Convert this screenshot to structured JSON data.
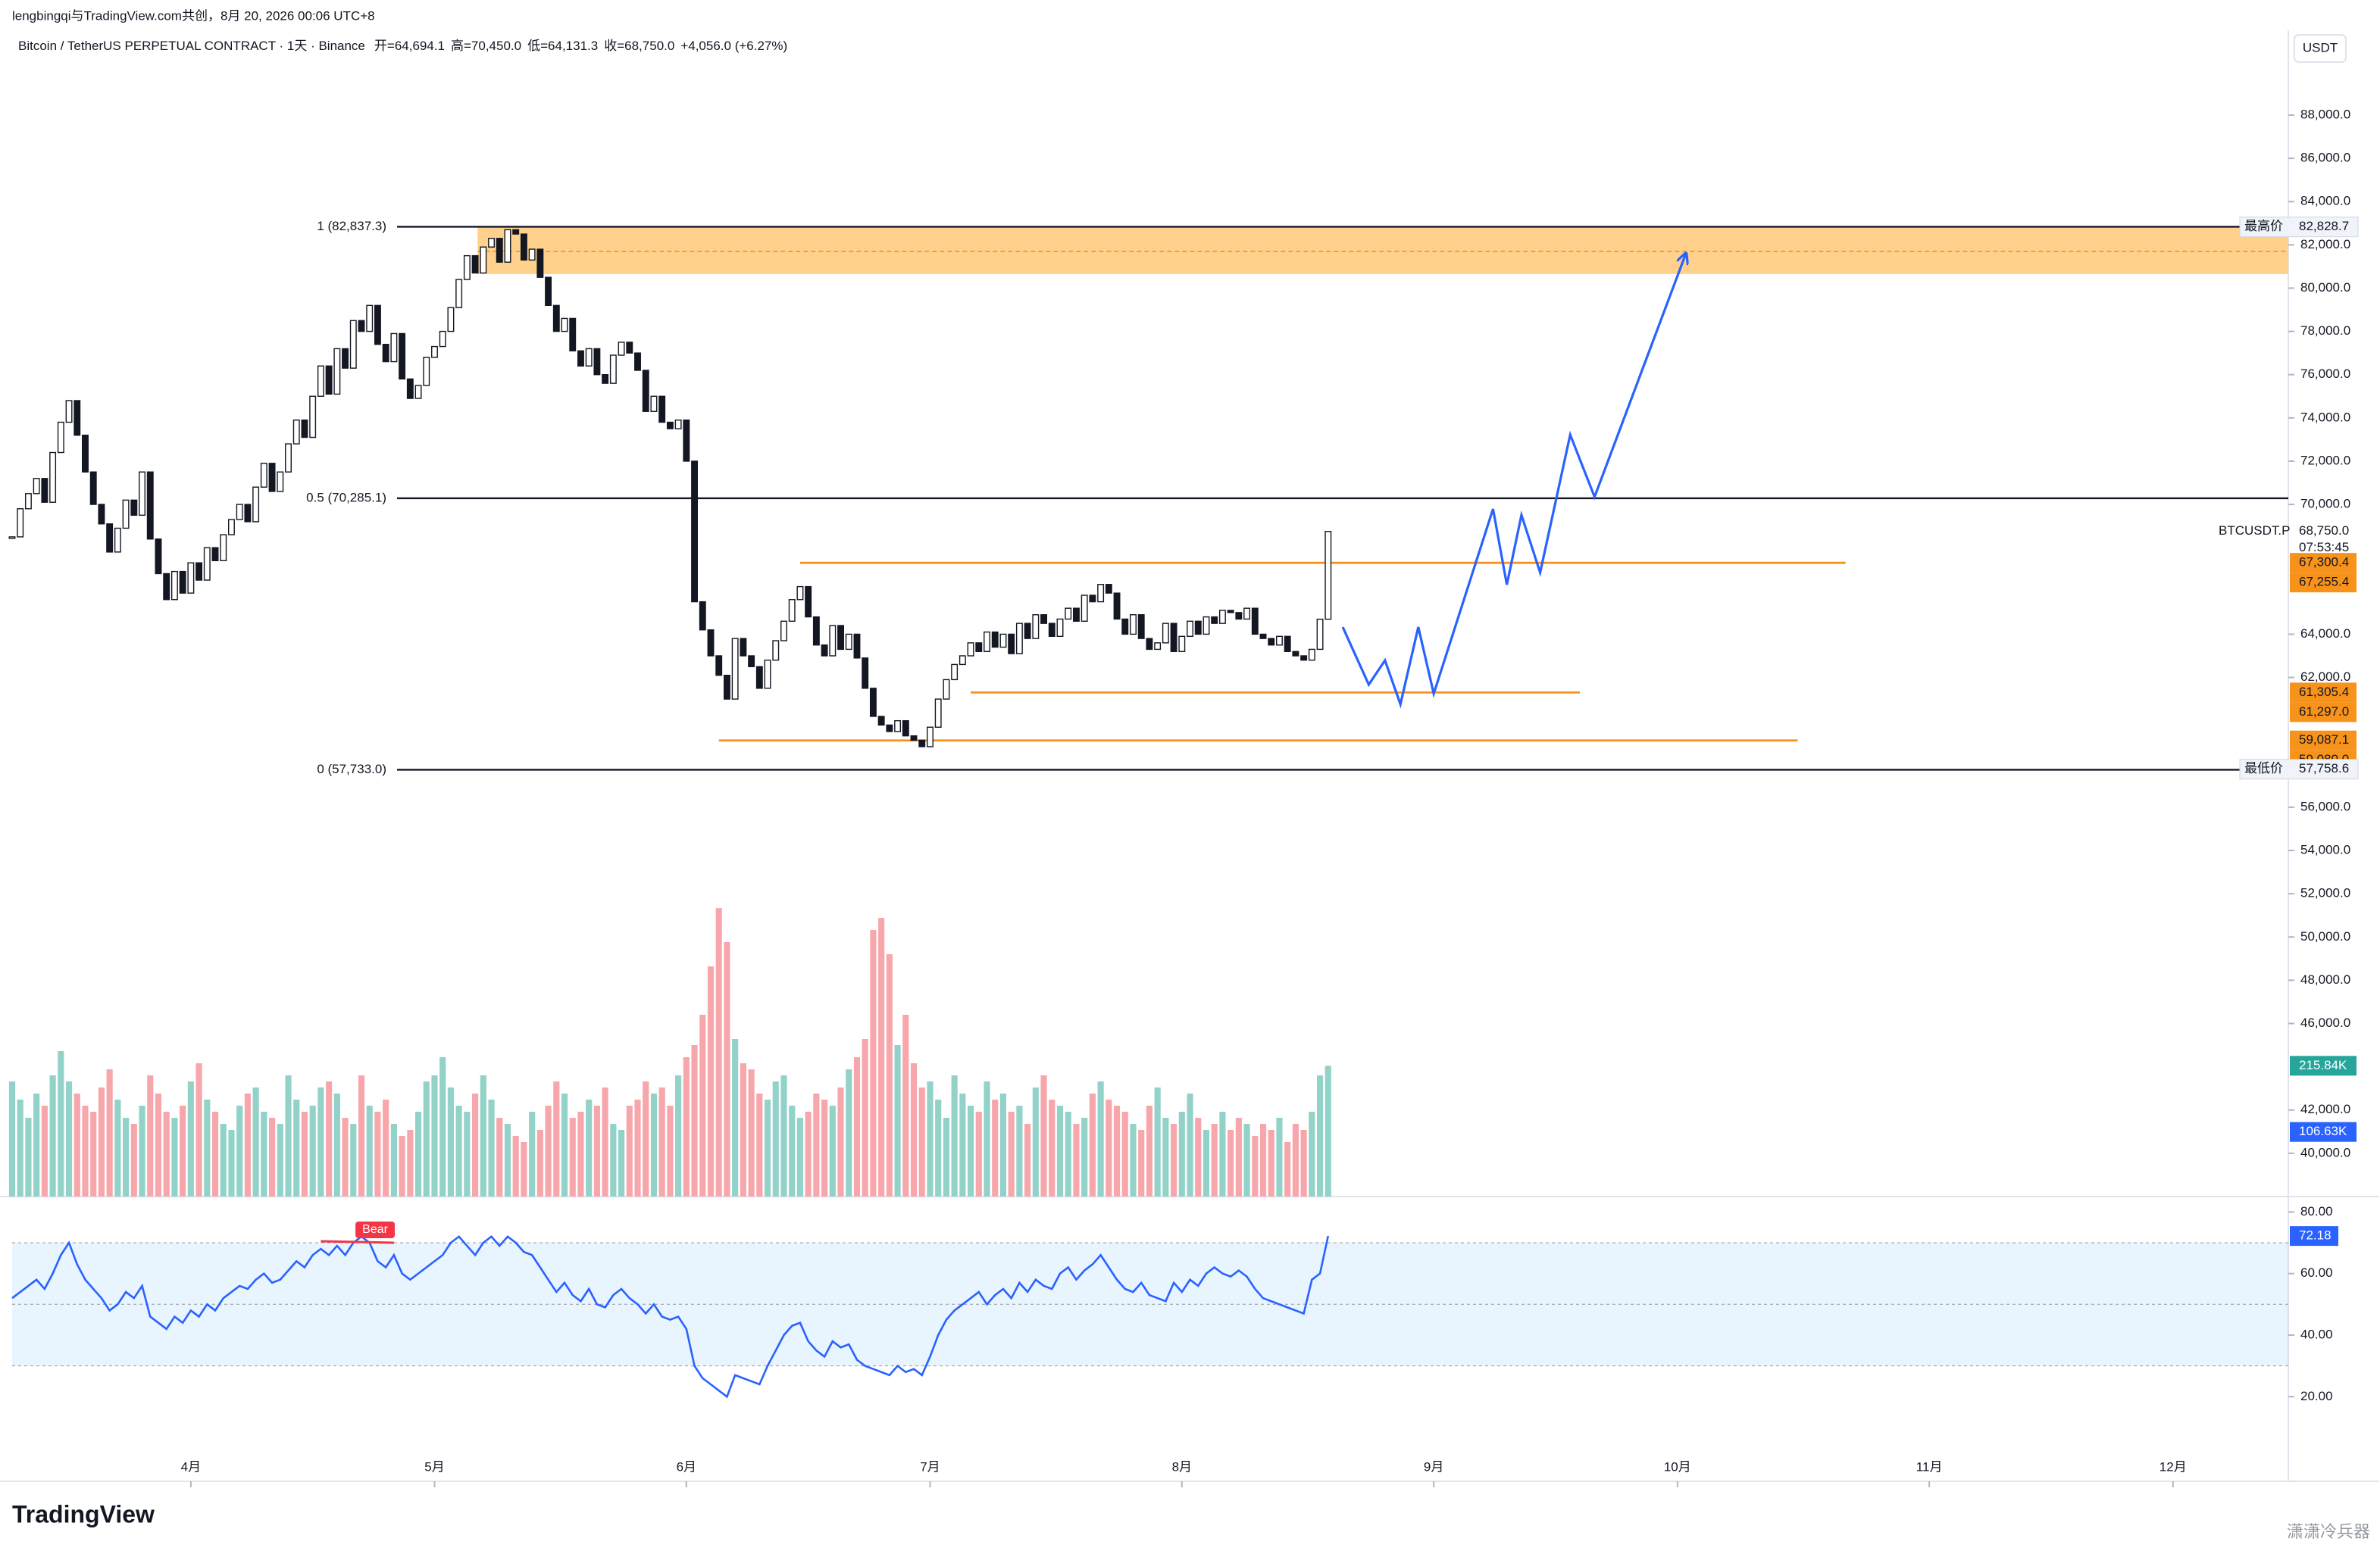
{
  "chart_data": {
    "type": "candlestick",
    "credit": "lengbingqi与TradingView.com共创，8月 20, 2026 00:06 UTC+8",
    "title": "Bitcoin / TetherUS PERPETUAL CONTRACT · 1天 · Binance",
    "ohlc_labels": [
      "开=64,694.1",
      "高=70,450.0",
      "低=64,131.3",
      "收=68,750.0",
      "+4,056.0 (+6.27%)"
    ],
    "currency": "USDT",
    "xlim": [
      0,
      280.2
    ],
    "xticks": [
      {
        "value": 22,
        "label": "4月"
      },
      {
        "value": 52,
        "label": "5月"
      },
      {
        "value": 83,
        "label": "6月"
      },
      {
        "value": 113,
        "label": "7月"
      },
      {
        "value": 144,
        "label": "8月"
      },
      {
        "value": 175,
        "label": "9月"
      },
      {
        "value": 205,
        "label": "10月"
      },
      {
        "value": 236,
        "label": "11月"
      },
      {
        "value": 266,
        "label": "12月"
      }
    ],
    "ylim": [
      38000,
      90170
    ],
    "yticks": [
      {
        "value": 40000,
        "label": "40,000.0"
      },
      {
        "value": 42000,
        "label": "42,000.0"
      },
      {
        "value": 46000,
        "label": "46,000.0"
      },
      {
        "value": 48000,
        "label": "48,000.0"
      },
      {
        "value": 50000,
        "label": "50,000.0"
      },
      {
        "value": 52000,
        "label": "52,000.0"
      },
      {
        "value": 54000,
        "label": "54,000.0"
      },
      {
        "value": 56000,
        "label": "56,000.0"
      },
      {
        "value": 62000,
        "label": "62,000.0"
      },
      {
        "value": 64000,
        "label": "64,000.0"
      },
      {
        "value": 70000,
        "label": "70,000.0"
      },
      {
        "value": 72000,
        "label": "72,000.0"
      },
      {
        "value": 74000,
        "label": "74,000.0"
      },
      {
        "value": 76000,
        "label": "76,000.0"
      },
      {
        "value": 78000,
        "label": "78,000.0"
      },
      {
        "value": 80000,
        "label": "80,000.0"
      },
      {
        "value": 82000,
        "label": "82,000.0"
      },
      {
        "value": 84000,
        "label": "84,000.0"
      },
      {
        "value": 86000,
        "label": "86,000.0"
      },
      {
        "value": 88000,
        "label": "88,000.0"
      }
    ],
    "close": [
      68500,
      69800,
      70500,
      71200,
      70100,
      72400,
      73800,
      74800,
      73200,
      71500,
      70000,
      69100,
      67800,
      68900,
      70200,
      69500,
      71500,
      68400,
      66800,
      65600,
      66900,
      65900,
      67300,
      66500,
      68000,
      67400,
      68600,
      69300,
      70000,
      69200,
      70800,
      71900,
      70600,
      71500,
      72800,
      73900,
      73100,
      75000,
      76400,
      75100,
      77200,
      76300,
      78500,
      78000,
      79200,
      77400,
      76600,
      77900,
      75800,
      74900,
      75500,
      76800,
      77300,
      78000,
      79100,
      80400,
      81500,
      80700,
      81900,
      82300,
      81200,
      82700,
      82500,
      81300,
      81800,
      80500,
      79200,
      78000,
      78600,
      77100,
      76400,
      77200,
      76000,
      75600,
      76900,
      77500,
      77000,
      76200,
      74300,
      75000,
      73800,
      73500,
      73900,
      72000,
      65500,
      64200,
      63000,
      62100,
      61000,
      63800,
      63000,
      62500,
      61500,
      62800,
      63700,
      64600,
      65600,
      66200,
      64800,
      63500,
      63000,
      64400,
      63300,
      64000,
      62900,
      61500,
      60200,
      59800,
      59500,
      60000,
      59300,
      59100,
      58800,
      59700,
      61000,
      61900,
      62600,
      63000,
      63600,
      63200,
      64100,
      63400,
      64000,
      63100,
      64500,
      63800,
      64900,
      64500,
      63900,
      64700,
      65200,
      64600,
      65800,
      65500,
      66300,
      65900,
      64700,
      64000,
      64900,
      63800,
      63300,
      63600,
      64500,
      63200,
      63900,
      64600,
      64000,
      64800,
      64500,
      65100,
      65000,
      64700,
      65200,
      64000,
      63800,
      63500,
      63900,
      63200,
      63000,
      62800,
      63300,
      64694.1,
      68750
    ],
    "colors": {
      "up": "#ffffff",
      "down": "#131722",
      "vol_up": "#92d2c9",
      "vol_down": "#f7a7ab",
      "level": "#f7931a",
      "zone": "#ffcc80",
      "projection": "#2962ff"
    },
    "volume": [
      190,
      160,
      130,
      170,
      150,
      200,
      240,
      190,
      170,
      150,
      140,
      180,
      210,
      160,
      130,
      120,
      150,
      200,
      170,
      140,
      130,
      150,
      190,
      220,
      160,
      140,
      120,
      110,
      150,
      170,
      180,
      140,
      130,
      120,
      200,
      160,
      140,
      150,
      180,
      190,
      170,
      130,
      120,
      200,
      150,
      140,
      160,
      120,
      100,
      110,
      140,
      190,
      200,
      230,
      180,
      150,
      140,
      170,
      200,
      160,
      130,
      120,
      100,
      90,
      140,
      110,
      150,
      190,
      170,
      130,
      140,
      160,
      150,
      180,
      120,
      110,
      150,
      160,
      190,
      170,
      180,
      150,
      200,
      230,
      250,
      300,
      380,
      476,
      420,
      260,
      220,
      210,
      170,
      160,
      190,
      200,
      150,
      130,
      140,
      170,
      160,
      150,
      180,
      210,
      230,
      260,
      440,
      460,
      400,
      250,
      300,
      220,
      180,
      190,
      160,
      130,
      200,
      170,
      150,
      140,
      190,
      160,
      170,
      140,
      150,
      120,
      180,
      200,
      160,
      150,
      140,
      120,
      130,
      170,
      190,
      160,
      150,
      140,
      120,
      110,
      150,
      180,
      130,
      120,
      140,
      170,
      130,
      110,
      120,
      140,
      110,
      130,
      120,
      100,
      120,
      110,
      130,
      90,
      120,
      110,
      140,
      200,
      215.84
    ],
    "vlim": [
      0,
      500
    ],
    "volume_marker": {
      "value": 215.84,
      "label": "215.84K"
    },
    "volume_ma_marker": {
      "value": 106.63,
      "label": "106.63K"
    },
    "fib": [
      {
        "value": 82837.3,
        "label": "1 (82,837.3)"
      },
      {
        "value": 70285.1,
        "label": "0.5 (70,285.1)"
      },
      {
        "value": 57733,
        "label": "0 (57,733.0)"
      }
    ],
    "zone": {
      "range": [
        80650,
        82837.3
      ],
      "mid": 81700,
      "start": 57.3
    },
    "levels": [
      {
        "value": 67300,
        "x": [
          97,
          225.7
        ]
      },
      {
        "value": 61305,
        "x": [
          118,
          193
        ]
      },
      {
        "value": 59087,
        "x": [
          87,
          219.8
        ]
      }
    ],
    "level_labels": [
      {
        "value": 67300.4,
        "label": "67,300.4"
      },
      {
        "value": 67255.4,
        "label": "67,255.4"
      },
      {
        "value": 61305.4,
        "label": "61,305.4"
      },
      {
        "value": 61297,
        "label": "61,297.0"
      },
      {
        "value": 59087.1,
        "label": "59,087.1"
      },
      {
        "value": 59080,
        "label": "59,080.0"
      }
    ],
    "price_tags": [
      {
        "tag": "最高价",
        "value": 82828.7,
        "label": "82,828.7"
      },
      {
        "tag": "最低价",
        "value": 57758.6,
        "label": "57,758.6"
      }
    ],
    "last": {
      "symbol": "BTCUSDT.P",
      "value": 68750,
      "label": "68,750.0",
      "countdown": "07:53:45"
    },
    "projection": {
      "x": [
        163.8,
        167.0,
        169.0,
        170.9,
        173.1,
        175.0,
        182.3,
        184.0,
        185.8,
        188.1,
        191.8,
        194.8,
        206.0
      ],
      "y": [
        64330,
        61670,
        62790,
        60760,
        64330,
        61250,
        69790,
        66290,
        69510,
        66850,
        73220,
        70350,
        81560
      ]
    },
    "rsi": {
      "values": [
        52,
        54,
        56,
        58,
        55,
        60,
        66,
        70,
        63,
        58,
        55,
        52,
        48,
        50,
        54,
        52,
        56,
        46,
        44,
        42,
        46,
        44,
        48,
        46,
        50,
        48,
        52,
        54,
        56,
        55,
        58,
        60,
        57,
        58,
        61,
        64,
        62,
        66,
        68,
        66,
        69,
        66,
        70,
        72,
        70,
        64,
        62,
        66,
        60,
        58,
        60,
        62,
        64,
        66,
        70,
        72,
        69,
        66,
        70,
        72,
        69,
        72,
        70,
        67,
        66,
        62,
        58,
        54,
        57,
        53,
        51,
        55,
        50,
        49,
        53,
        55,
        52,
        50,
        47,
        50,
        46,
        45,
        46,
        42,
        30,
        26,
        24,
        22,
        20,
        27,
        26,
        25,
        24,
        30,
        35,
        40,
        43,
        44,
        38,
        35,
        33,
        38,
        36,
        37,
        32,
        30,
        29,
        28,
        27,
        30,
        28,
        29,
        27,
        33,
        40,
        45,
        48,
        50,
        52,
        54,
        50,
        53,
        55,
        52,
        57,
        54,
        58,
        56,
        55,
        60,
        62,
        58,
        61,
        63,
        66,
        62,
        58,
        55,
        54,
        57,
        53,
        52,
        51,
        57,
        54,
        58,
        56,
        60,
        62,
        60,
        59,
        61,
        59,
        55,
        52,
        51,
        50,
        49,
        48,
        47,
        58,
        60,
        72.18
      ],
      "ylim": [
        -6,
        85
      ],
      "yticks": [
        {
          "value": 20,
          "label": "20.00"
        },
        {
          "value": 40,
          "label": "40.00"
        },
        {
          "value": 60,
          "label": "60.00"
        },
        {
          "value": 80,
          "label": "80.00"
        }
      ],
      "band": [
        30,
        70
      ],
      "mid": 50,
      "color": "#2962ff",
      "divergence": {
        "label": "Bear",
        "x": [
          38,
          47
        ],
        "y": [
          70.5,
          70
        ]
      }
    },
    "logo": "TradingView",
    "watermark": "潇潇冷兵器"
  }
}
